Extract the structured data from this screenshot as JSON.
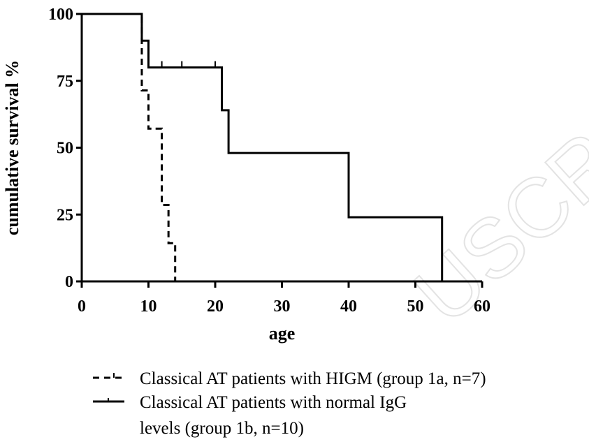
{
  "watermark": "USCRI",
  "chart_data": {
    "type": "line",
    "subtype": "kaplan-meier-survival",
    "xlabel": "age",
    "ylabel": "cumulative survival %",
    "xlim": [
      0,
      60
    ],
    "ylim": [
      0,
      100
    ],
    "xticks": [
      0,
      10,
      20,
      30,
      40,
      50,
      60
    ],
    "yticks": [
      0,
      25,
      50,
      75,
      100
    ],
    "grid": false,
    "legend_position": "bottom",
    "series": [
      {
        "name": "Classical AT patients with HIGM (group 1a, n=7)",
        "style": "dashed",
        "color": "#000000",
        "x": [
          0,
          9,
          9,
          10,
          10,
          12,
          12,
          13,
          13,
          14,
          14
        ],
        "y": [
          100,
          100,
          71.4,
          71.4,
          57.1,
          57.1,
          28.6,
          28.6,
          14.3,
          14.3,
          0
        ],
        "censored": []
      },
      {
        "name": "Classical AT patients with normal IgG levels  (group 1b, n=10)",
        "name_lines": [
          "Classical AT patients with normal IgG",
          "levels  (group 1b, n=10)"
        ],
        "style": "solid",
        "color": "#000000",
        "x": [
          0,
          9,
          9,
          10,
          10,
          21,
          21,
          22,
          22,
          40,
          40,
          54,
          54
        ],
        "y": [
          100,
          100,
          90,
          90,
          80,
          80,
          64,
          64,
          48,
          48,
          24,
          24,
          0
        ],
        "censored": [
          {
            "x": 12,
            "y": 80
          },
          {
            "x": 15,
            "y": 80
          },
          {
            "x": 20,
            "y": 80
          }
        ]
      }
    ]
  }
}
